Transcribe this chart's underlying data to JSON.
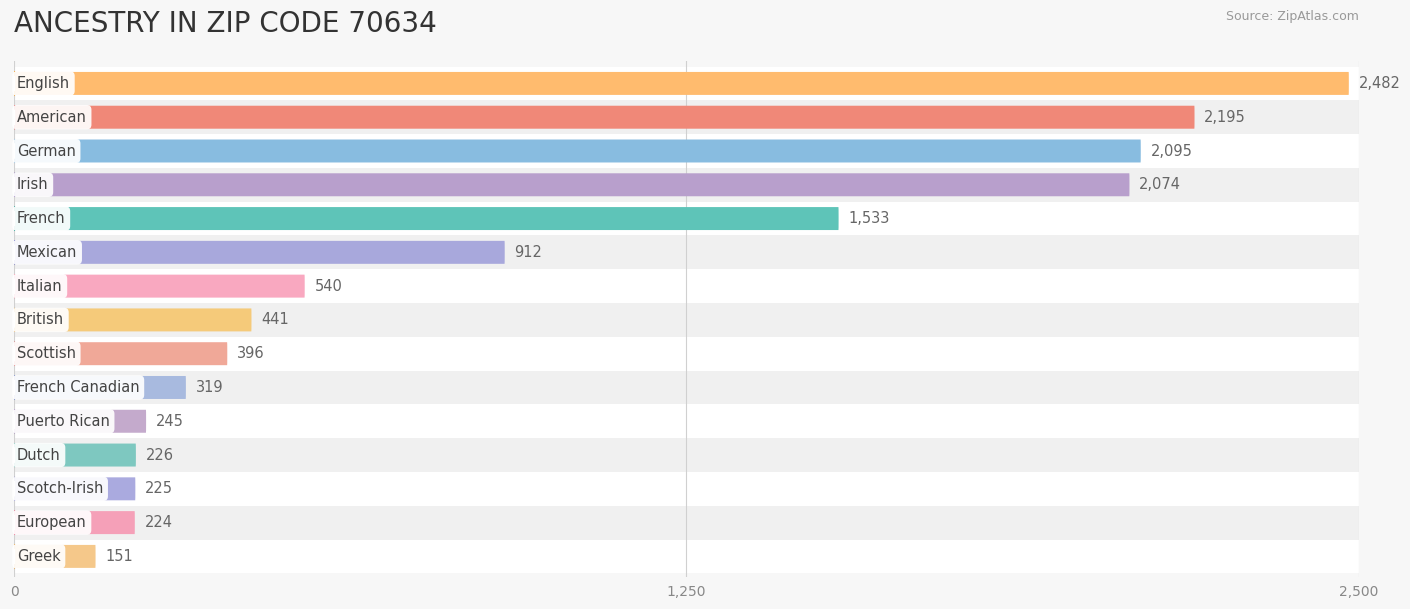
{
  "title": "ANCESTRY IN ZIP CODE 70634",
  "source": "Source: ZipAtlas.com",
  "categories": [
    "English",
    "American",
    "German",
    "Irish",
    "French",
    "Mexican",
    "Italian",
    "British",
    "Scottish",
    "French Canadian",
    "Puerto Rican",
    "Dutch",
    "Scotch-Irish",
    "European",
    "Greek"
  ],
  "values": [
    2482,
    2195,
    2095,
    2074,
    1533,
    912,
    540,
    441,
    396,
    319,
    245,
    226,
    225,
    224,
    151
  ],
  "bar_colors": [
    "#FFBB6E",
    "#F08878",
    "#88BCE0",
    "#B89FCC",
    "#5EC4B8",
    "#A8A8DC",
    "#F9A8C0",
    "#F5CA7A",
    "#F0A898",
    "#A8BADF",
    "#C4AACC",
    "#7EC8C0",
    "#AAAADF",
    "#F5A0B8",
    "#F5C88A"
  ],
  "dot_colors": [
    "#F5A030",
    "#E05858",
    "#4A8EC0",
    "#9070BB",
    "#30A898",
    "#7878C8",
    "#F07090",
    "#E0A040",
    "#E07878",
    "#8090C8",
    "#A080B8",
    "#40A898",
    "#8888C8",
    "#F07090",
    "#E8A850"
  ],
  "xlim": [
    0,
    2500
  ],
  "xticks": [
    0,
    1250,
    2500
  ],
  "background_color": "#f7f7f7",
  "title_fontsize": 20,
  "label_fontsize": 10.5,
  "value_fontsize": 10.5
}
